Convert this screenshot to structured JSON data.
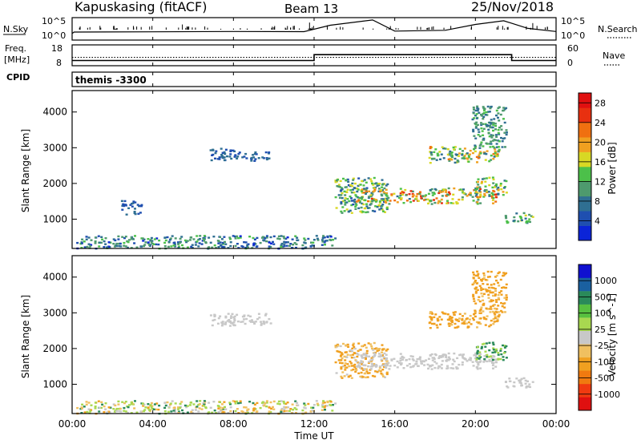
{
  "header": {
    "station": "Kapuskasing (fitACF)",
    "beam": "Beam 13",
    "date": "25/Nov/2018"
  },
  "status_panel": {
    "nsky_label": "N.Sky",
    "nsky_ticks": [
      "10^5",
      "10^0"
    ],
    "nsearch_label": "N.Search",
    "nsearch_ticks": [
      "10^5",
      "10^0"
    ],
    "freq_label": "Freq.",
    "freq_unit": "[MHz]",
    "freq_ticks": [
      "18",
      "8"
    ],
    "nave_label": "Nave",
    "nave_ticks": [
      "60",
      "0"
    ],
    "cpid_label": "CPID",
    "cpid_value": "themis -3300"
  },
  "time_axis": {
    "title": "Time UT",
    "ticks": [
      "00:00",
      "04:00",
      "08:00",
      "12:00",
      "16:00",
      "20:00",
      "00:00"
    ]
  },
  "colors": {
    "power_scale": [
      "#0b24d8",
      "#1f4fb0",
      "#2f6f92",
      "#4e9a6e",
      "#4cc04a",
      "#d8d824",
      "#f0a020",
      "#f07010",
      "#e83010",
      "#e01010"
    ],
    "velocity_scale": [
      "#e01010",
      "#f03a10",
      "#f07a10",
      "#f0a020",
      "#f0c060",
      "#c8c8c8",
      "#a8d850",
      "#58c040",
      "#2a8a5a",
      "#1a60a0",
      "#1010d0"
    ]
  },
  "chart_data": [
    {
      "type": "line",
      "name": "N.Sky / N.Search",
      "x_unit": "hours UT",
      "ylabel": "N.Sky",
      "y2label": "N.Search",
      "yscale": "log",
      "ylim": [
        1,
        100000
      ],
      "xlim": [
        0,
        24
      ],
      "series": [
        {
          "name": "N.Sky",
          "style": "solid",
          "x": [
            0,
            0.1,
            4,
            8,
            11.5,
            12.8,
            14.9,
            16,
            18.5,
            20,
            21.4,
            22.6,
            24
          ],
          "y": [
            30,
            60,
            70,
            80,
            75,
            2000,
            30000,
            100,
            150,
            3000,
            20000,
            400,
            80
          ]
        }
      ]
    },
    {
      "type": "line",
      "name": "Freq / Nave",
      "xlim": [
        0,
        24
      ],
      "ylabel": "Freq. [MHz]",
      "ylim": [
        8,
        18
      ],
      "y2label": "Nave",
      "y2lim": [
        0,
        60
      ],
      "series": [
        {
          "name": "Freq.",
          "style": "solid",
          "x": [
            0,
            12,
            12,
            21.8,
            21.8,
            24
          ],
          "y": [
            10.5,
            10.5,
            13.3,
            13.3,
            10.5,
            10.5
          ]
        },
        {
          "name": "Nave",
          "style": "dotted",
          "x": [
            0,
            24
          ],
          "y": [
            24,
            24
          ]
        }
      ]
    },
    {
      "type": "heatmap",
      "name": "Power",
      "xlabel": "Time UT",
      "ylabel": "Slant Range [km]",
      "xlim": [
        0,
        24
      ],
      "ylim": [
        180,
        4600
      ],
      "yticks": [
        1000,
        2000,
        3000,
        4000
      ],
      "colorbar": {
        "label": "Power [dB]",
        "ticks": [
          4,
          8,
          12,
          16,
          20,
          24,
          28
        ],
        "range": [
          0,
          30
        ]
      },
      "regions": [
        {
          "t": [
            0.2,
            13.0
          ],
          "r": [
            200,
            560
          ],
          "v": [
            2,
            14
          ]
        },
        {
          "t": [
            6.8,
            8.6
          ],
          "r": [
            2650,
            3000
          ],
          "v": [
            4,
            9
          ]
        },
        {
          "t": [
            8.6,
            9.8
          ],
          "r": [
            2650,
            2900
          ],
          "v": [
            4,
            8
          ]
        },
        {
          "t": [
            13.0,
            15.6
          ],
          "r": [
            1200,
            2200
          ],
          "v": [
            5,
            18
          ]
        },
        {
          "t": [
            14.0,
            21.0
          ],
          "r": [
            1450,
            1900
          ],
          "v": [
            8,
            26
          ]
        },
        {
          "t": [
            17.6,
            21.2
          ],
          "r": [
            2600,
            3050
          ],
          "v": [
            6,
            22
          ]
        },
        {
          "t": [
            20.0,
            21.5
          ],
          "r": [
            1700,
            2200
          ],
          "v": [
            6,
            20
          ]
        },
        {
          "t": [
            21.4,
            22.8
          ],
          "r": [
            900,
            1200
          ],
          "v": [
            6,
            16
          ]
        },
        {
          "t": [
            2.4,
            3.4
          ],
          "r": [
            1150,
            1550
          ],
          "v": [
            4,
            8
          ]
        },
        {
          "t": [
            19.8,
            21.5
          ],
          "r": [
            3000,
            4200
          ],
          "v": [
            6,
            14
          ]
        }
      ]
    },
    {
      "type": "heatmap",
      "name": "Velocity",
      "xlabel": "Time UT",
      "ylabel": "Slant Range [km]",
      "xlim": [
        0,
        24
      ],
      "ylim": [
        180,
        4600
      ],
      "yticks": [
        1000,
        2000,
        3000,
        4000
      ],
      "colorbar": {
        "label": "Velocity [m s^-1]",
        "ticks": [
          1000,
          500,
          100,
          25,
          -25,
          -100,
          -500,
          -1000
        ]
      },
      "regions": [
        {
          "t": [
            0.2,
            13.0
          ],
          "r": [
            200,
            560
          ],
          "v": [
            -150,
            150
          ]
        },
        {
          "t": [
            6.8,
            9.8
          ],
          "r": [
            2650,
            3000
          ],
          "v": [
            -20,
            20
          ]
        },
        {
          "t": [
            13.0,
            15.6
          ],
          "r": [
            1200,
            2200
          ],
          "v": [
            -300,
            20
          ]
        },
        {
          "t": [
            14.0,
            21.0
          ],
          "r": [
            1450,
            1900
          ],
          "v": [
            -20,
            20
          ]
        },
        {
          "t": [
            17.6,
            21.2
          ],
          "r": [
            2600,
            3050
          ],
          "v": [
            -250,
            -60
          ]
        },
        {
          "t": [
            20.0,
            21.5
          ],
          "r": [
            1700,
            2200
          ],
          "v": [
            40,
            160
          ]
        },
        {
          "t": [
            21.4,
            22.8
          ],
          "r": [
            900,
            1200
          ],
          "v": [
            -20,
            20
          ]
        },
        {
          "t": [
            19.8,
            21.5
          ],
          "r": [
            3000,
            4200
          ],
          "v": [
            -200,
            -60
          ]
        }
      ]
    }
  ]
}
